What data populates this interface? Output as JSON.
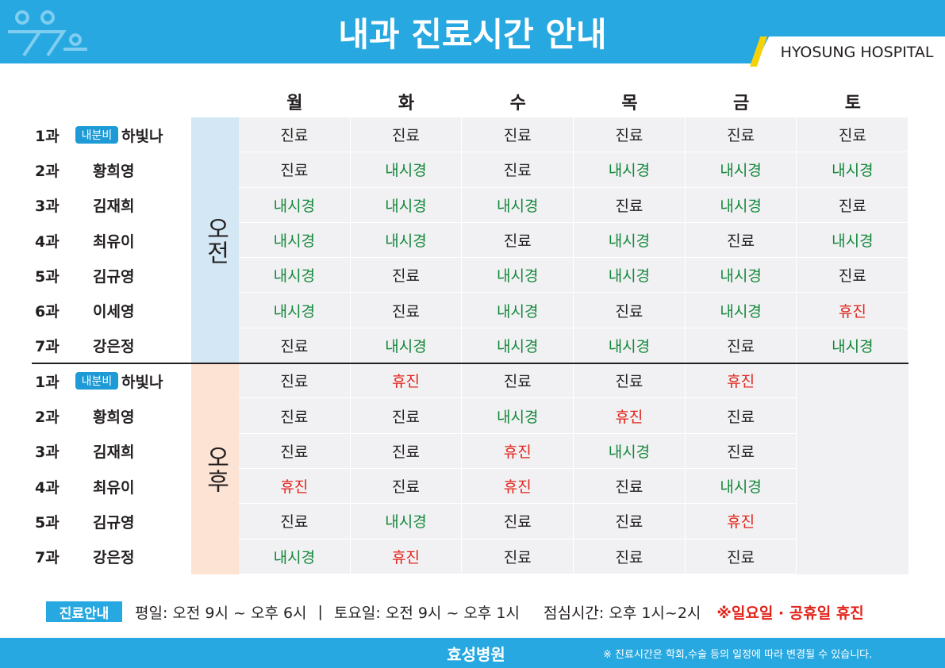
{
  "header": {
    "title": "내과 진료시간 안내",
    "hospital": "HYOSUNG HOSPITAL"
  },
  "table": {
    "days": [
      "월",
      "화",
      "수",
      "목",
      "금",
      "토"
    ],
    "cell_colors": {
      "진료": "#231f20",
      "내시경": "#12873a",
      "휴진": "#e2231a"
    },
    "sessions": [
      {
        "label": "오전",
        "color": "#d3e7f4",
        "rows": [
          {
            "dept": "1과",
            "badge": "내분비",
            "doctor": "하빛나",
            "cells": [
              "진료",
              "진료",
              "진료",
              "진료",
              "진료",
              "진료"
            ]
          },
          {
            "dept": "2과",
            "doctor": "황희영",
            "cells": [
              "진료",
              "내시경",
              "진료",
              "내시경",
              "내시경",
              "내시경"
            ]
          },
          {
            "dept": "3과",
            "doctor": "김재희",
            "cells": [
              "내시경",
              "내시경",
              "내시경",
              "진료",
              "내시경",
              "진료"
            ]
          },
          {
            "dept": "4과",
            "doctor": "최유이",
            "cells": [
              "내시경",
              "내시경",
              "진료",
              "내시경",
              "진료",
              "내시경"
            ]
          },
          {
            "dept": "5과",
            "doctor": "김규영",
            "cells": [
              "내시경",
              "진료",
              "내시경",
              "내시경",
              "내시경",
              "진료"
            ]
          },
          {
            "dept": "6과",
            "doctor": "이세영",
            "cells": [
              "내시경",
              "진료",
              "내시경",
              "진료",
              "내시경",
              "휴진"
            ]
          },
          {
            "dept": "7과",
            "doctor": "강은정",
            "cells": [
              "진료",
              "내시경",
              "내시경",
              "내시경",
              "진료",
              "내시경"
            ]
          }
        ]
      },
      {
        "label": "오후",
        "color": "#fce3d3",
        "rows": [
          {
            "dept": "1과",
            "badge": "내분비",
            "doctor": "하빛나",
            "cells": [
              "진료",
              "휴진",
              "진료",
              "진료",
              "휴진"
            ]
          },
          {
            "dept": "2과",
            "doctor": "황희영",
            "cells": [
              "진료",
              "진료",
              "내시경",
              "휴진",
              "진료"
            ]
          },
          {
            "dept": "3과",
            "doctor": "김재희",
            "cells": [
              "진료",
              "진료",
              "휴진",
              "내시경",
              "진료"
            ]
          },
          {
            "dept": "4과",
            "doctor": "최유이",
            "cells": [
              "휴진",
              "진료",
              "휴진",
              "진료",
              "내시경"
            ]
          },
          {
            "dept": "5과",
            "doctor": "김규영",
            "cells": [
              "진료",
              "내시경",
              "진료",
              "진료",
              "휴진"
            ]
          },
          {
            "dept": "7과",
            "doctor": "강은정",
            "cells": [
              "내시경",
              "휴진",
              "진료",
              "진료",
              "진료"
            ]
          }
        ]
      }
    ]
  },
  "info": {
    "badge": "진료안내",
    "weekday": "평일: 오전 9시 ~ 오후 6시",
    "separator": "|",
    "saturday": "토요일: 오전 9시 ~ 오후 1시",
    "lunch": "점심시간: 오후 1시~2시",
    "closed": "※일요일 · 공휴일 휴진"
  },
  "footer": {
    "logo": "효성병원",
    "note": "※ 진료시간은 학회,수술 등의 일정에 따라 변경될 수 있습니다."
  }
}
